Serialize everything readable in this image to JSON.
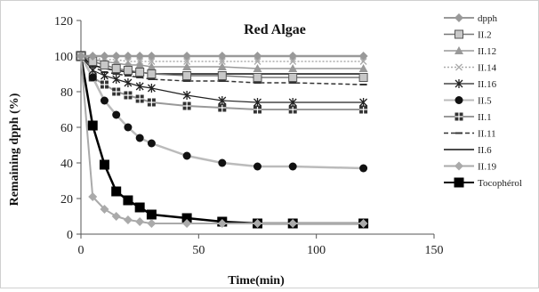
{
  "chart_data": {
    "type": "line",
    "title": "Red Algae",
    "xlabel": "Time(min)",
    "ylabel": "Remaining dpph (%)",
    "xlim": [
      0,
      150
    ],
    "ylim": [
      0,
      120
    ],
    "xticks": [
      0,
      50,
      100,
      150
    ],
    "yticks": [
      0,
      20,
      40,
      60,
      80,
      100,
      120
    ],
    "x": [
      0,
      5,
      10,
      15,
      20,
      25,
      30,
      45,
      60,
      75,
      90,
      120
    ],
    "grid": false,
    "legend_position": "right",
    "series": [
      {
        "name": "dpph",
        "color": "#999999",
        "marker": "diamond",
        "dash": "",
        "width": 2.5,
        "values": [
          100,
          100,
          100,
          100,
          100,
          100,
          100,
          100,
          100,
          100,
          100,
          100
        ]
      },
      {
        "name": "II.2",
        "color": "#777777",
        "marker": "square-open",
        "dash": "",
        "width": 1.5,
        "values": [
          100,
          97,
          95,
          93,
          92,
          91,
          90,
          89,
          89,
          88,
          88,
          88
        ]
      },
      {
        "name": "II.12",
        "color": "#999999",
        "marker": "triangle",
        "dash": "",
        "width": 1.5,
        "values": [
          100,
          98,
          97,
          96,
          95,
          95,
          94,
          94,
          94,
          93,
          93,
          93
        ]
      },
      {
        "name": "II.14",
        "color": "#aaaaaa",
        "marker": "x",
        "dash": "2,2",
        "width": 1.5,
        "values": [
          100,
          99,
          98,
          98,
          97,
          97,
          97,
          97,
          97,
          97,
          97,
          97
        ]
      },
      {
        "name": "II.16",
        "color": "#222222",
        "marker": "star",
        "dash": "",
        "width": 1.2,
        "values": [
          100,
          92,
          89,
          87,
          85,
          83,
          82,
          78,
          75,
          74,
          74,
          74
        ]
      },
      {
        "name": "II.5",
        "color": "#bbbbbb",
        "marker": "circle",
        "markerColor": "#111111",
        "dash": "",
        "width": 2.5,
        "values": [
          100,
          88,
          75,
          67,
          60,
          54,
          51,
          44,
          40,
          38,
          38,
          37
        ]
      },
      {
        "name": "II.1",
        "color": "#999999",
        "marker": "plus-square",
        "markerColor": "#333333",
        "dash": "",
        "width": 2,
        "values": [
          100,
          88,
          84,
          80,
          78,
          76,
          74,
          72,
          71,
          70,
          70,
          70
        ]
      },
      {
        "name": "II.11",
        "color": "#333333",
        "marker": "dash",
        "dash": "5,3",
        "width": 1.5,
        "values": [
          100,
          94,
          91,
          90,
          89,
          88,
          87,
          86,
          86,
          85,
          85,
          84
        ]
      },
      {
        "name": "II.6",
        "color": "#111111",
        "marker": "none",
        "dash": "",
        "width": 1.5,
        "values": [
          100,
          95,
          93,
          92,
          91,
          91,
          90,
          90,
          90,
          90,
          90,
          90
        ]
      },
      {
        "name": "II.19",
        "color": "#aaaaaa",
        "marker": "diamond",
        "dash": "",
        "width": 2,
        "values": [
          100,
          21,
          14,
          10,
          8,
          7,
          6,
          6,
          6,
          6,
          6,
          6
        ]
      },
      {
        "name": "Tocophérol",
        "color": "#000000",
        "marker": "square",
        "dash": "",
        "width": 2.5,
        "values": [
          100,
          61,
          39,
          24,
          19,
          15,
          11,
          9,
          7,
          6,
          6,
          6
        ]
      }
    ]
  }
}
